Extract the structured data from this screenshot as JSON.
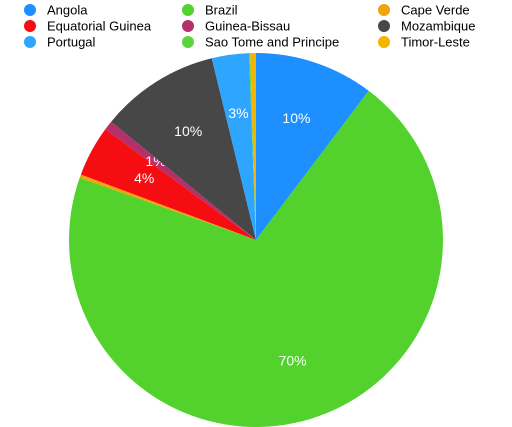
{
  "chart_data": {
    "type": "pie",
    "categories": [
      "Angola",
      "Brazil",
      "Cape Verde",
      "Equatorial Guinea",
      "Guinea-Bissau",
      "Mozambique",
      "Portugal",
      "Sao Tome and Principe",
      "Timor-Leste"
    ],
    "values": [
      10.3,
      70.1,
      0.3,
      4.4,
      0.8,
      10.3,
      3.2,
      0.1,
      0.5
    ],
    "value_labels": [
      "10%",
      "70%",
      null,
      "4%",
      "1%",
      "10%",
      "3%",
      null,
      null
    ],
    "colors": [
      "#1e8fff",
      "#53d22e",
      "#f0a30a",
      "#f50d12",
      "#b3306a",
      "#474747",
      "#2ea6ff",
      "#5cd43e",
      "#f5b400"
    ]
  }
}
